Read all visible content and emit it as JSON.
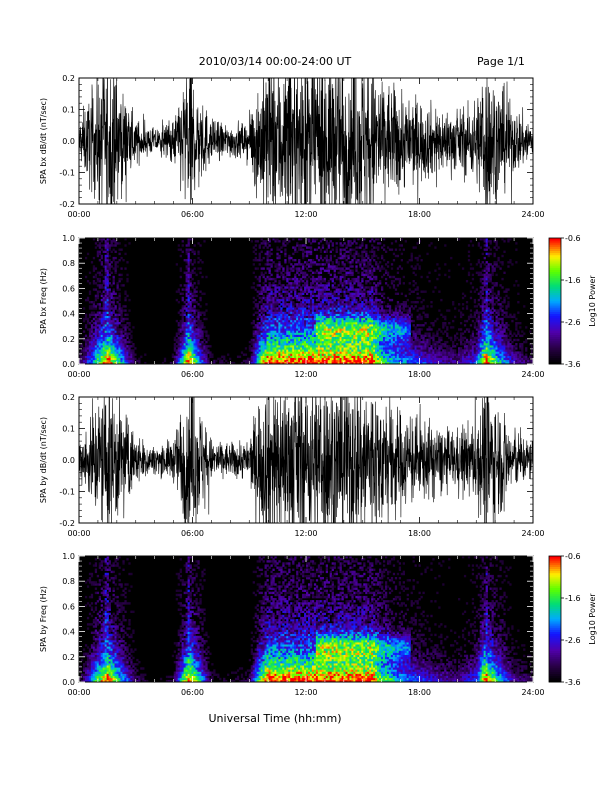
{
  "header": {
    "title": "2010/03/14  00:00-24:00 UT",
    "page": "Page 1/1"
  },
  "xaxis": {
    "title": "Universal Time (hh:mm)",
    "range": [
      0,
      24
    ],
    "ticks": [
      0,
      6,
      12,
      18,
      24
    ],
    "tick_labels": [
      "00:00",
      "06:00",
      "12:00",
      "18:00",
      "24:00"
    ]
  },
  "chart_data": [
    {
      "type": "line",
      "ylabel": "SPA bx dB/dt (nT/sec)",
      "ylim": [
        -0.2,
        0.2
      ],
      "yticks": [
        -0.2,
        -0.1,
        0.0,
        0.1,
        0.2
      ],
      "ytick_labels": [
        "-0.2",
        "-0.1",
        "0.0",
        "0.1",
        "0.2"
      ],
      "series": [
        {
          "x": [
            0,
            1,
            1.5,
            2,
            3,
            4,
            5,
            5.8,
            6.5,
            7,
            8,
            9,
            9.5,
            10,
            11,
            12,
            13,
            14,
            15,
            15.5,
            16,
            17,
            18,
            19,
            20,
            21,
            21.5,
            22,
            23,
            24
          ],
          "amplitude": [
            0.05,
            0.15,
            0.2,
            0.15,
            0.05,
            0.03,
            0.05,
            0.2,
            0.1,
            0.05,
            0.04,
            0.05,
            0.15,
            0.2,
            0.2,
            0.2,
            0.2,
            0.2,
            0.2,
            0.2,
            0.15,
            0.12,
            0.1,
            0.08,
            0.07,
            0.1,
            0.2,
            0.15,
            0.08,
            0.05
          ]
        }
      ]
    },
    {
      "type": "heatmap",
      "ylabel": "SPA bx Freq (Hz)",
      "ylim": [
        0,
        1
      ],
      "yticks": [
        0,
        0.2,
        0.4,
        0.6,
        0.8,
        1.0
      ],
      "ytick_labels": [
        "0.0",
        "0.2",
        "0.4",
        "0.6",
        "0.8",
        "1.0"
      ],
      "colorbar": {
        "label": "Log10 Power",
        "range": [
          -3.6,
          -0.6
        ],
        "ticks": [
          -3.6,
          -2.6,
          -1.6,
          -0.6
        ],
        "tick_labels": [
          "-3.6",
          "-2.6",
          "-1.6",
          "-0.6"
        ]
      }
    },
    {
      "type": "line",
      "ylabel": "SPA by dB/dt (nT/sec)",
      "ylim": [
        -0.2,
        0.2
      ],
      "yticks": [
        -0.2,
        -0.1,
        0.0,
        0.1,
        0.2
      ],
      "ytick_labels": [
        "-0.2",
        "-0.1",
        "0.0",
        "0.1",
        "0.2"
      ],
      "series": [
        {
          "x": [
            0,
            1,
            1.5,
            2,
            3,
            4,
            5,
            5.8,
            6.5,
            7,
            8,
            9,
            9.5,
            10,
            11,
            12,
            13,
            14,
            15,
            15.5,
            16,
            17,
            18,
            19,
            20,
            21,
            21.5,
            22,
            23,
            24
          ],
          "amplitude": [
            0.04,
            0.15,
            0.2,
            0.15,
            0.06,
            0.03,
            0.05,
            0.2,
            0.12,
            0.05,
            0.04,
            0.05,
            0.15,
            0.2,
            0.2,
            0.2,
            0.2,
            0.2,
            0.2,
            0.2,
            0.16,
            0.12,
            0.1,
            0.08,
            0.07,
            0.1,
            0.2,
            0.15,
            0.07,
            0.05
          ]
        }
      ]
    },
    {
      "type": "heatmap",
      "ylabel": "SPA by Freq (Hz)",
      "ylim": [
        0,
        1
      ],
      "yticks": [
        0,
        0.2,
        0.4,
        0.6,
        0.8,
        1.0
      ],
      "ytick_labels": [
        "0.0",
        "0.2",
        "0.4",
        "0.6",
        "0.8",
        "1.0"
      ],
      "colorbar": {
        "label": "Log10 Power",
        "range": [
          -3.6,
          -0.6
        ],
        "ticks": [
          -3.6,
          -2.6,
          -1.6,
          -0.6
        ],
        "tick_labels": [
          "-3.6",
          "-2.6",
          "-1.6",
          "-0.6"
        ]
      }
    }
  ]
}
